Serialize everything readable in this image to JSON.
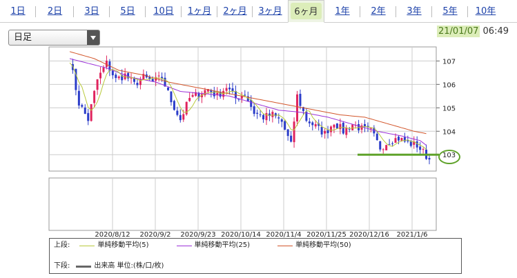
{
  "tabs": [
    {
      "label": "1日",
      "w": 52
    },
    {
      "label": "2日",
      "w": 55
    },
    {
      "label": "3日",
      "w": 52
    },
    {
      "label": "5日",
      "w": 52
    },
    {
      "label": "10日",
      "w": 52
    },
    {
      "label": "1ヶ月",
      "w": 52
    },
    {
      "label": "2ヶ月",
      "w": 51
    },
    {
      "label": "3ヶ月",
      "w": 51
    },
    {
      "label": "6ヶ月",
      "w": 53,
      "active": true
    },
    {
      "label": "1年",
      "w": 52
    },
    {
      "label": "2年",
      "w": 52
    },
    {
      "label": "3年",
      "w": 52
    },
    {
      "label": "5年",
      "w": 52
    },
    {
      "label": "10年",
      "w": 51
    }
  ],
  "period_select": {
    "value": "日足"
  },
  "timestamp": {
    "date": "21/01/07",
    "time": "06:49"
  },
  "legend": {
    "upper_label": "上段:",
    "lower_label": "下段:",
    "ma5": "単純移動平均(5)",
    "ma25": "単純移動平均(25)",
    "ma50": "単純移動平均(50)",
    "volume": "出来高 単位:(株/口/枚)"
  },
  "colors": {
    "up": "#e0245e",
    "down": "#2a3cc9",
    "ma5": "#b8c93a",
    "ma25": "#9b30d9",
    "ma50": "#d2552a",
    "annotation": "#5fa22a"
  },
  "chart_data": {
    "type": "candlestick",
    "y_ticks": [
      107,
      106,
      105,
      104,
      103
    ],
    "ylim": [
      102.3,
      107.6
    ],
    "x_ticks": [
      "2020/8/12",
      "2020/9/2",
      "2020/9/23",
      "2020/10/14",
      "2020/11/4",
      "2020/11/25",
      "2020/12/16",
      "2021/1/6"
    ],
    "highlight_level": 103.0,
    "highlight_label": "103",
    "close_trend": [
      [
        0,
        107.1
      ],
      [
        3,
        105.2
      ],
      [
        6,
        104.5
      ],
      [
        9,
        106.2
      ],
      [
        12,
        106.9
      ],
      [
        15,
        106.2
      ],
      [
        18,
        106.4
      ],
      [
        21,
        106.0
      ],
      [
        24,
        106.3
      ],
      [
        27,
        106.1
      ],
      [
        30,
        106.3
      ],
      [
        33,
        105.3
      ],
      [
        36,
        104.5
      ],
      [
        39,
        105.4
      ],
      [
        42,
        105.6
      ],
      [
        45,
        105.8
      ],
      [
        48,
        105.5
      ],
      [
        51,
        105.9
      ],
      [
        54,
        105.4
      ],
      [
        57,
        105.6
      ],
      [
        60,
        104.8
      ],
      [
        63,
        104.6
      ],
      [
        66,
        104.7
      ],
      [
        69,
        104.4
      ],
      [
        72,
        103.4
      ],
      [
        74,
        105.5
      ],
      [
        77,
        104.5
      ],
      [
        80,
        104.2
      ],
      [
        83,
        103.9
      ],
      [
        86,
        104.4
      ],
      [
        89,
        104.0
      ],
      [
        92,
        104.3
      ],
      [
        95,
        104.1
      ],
      [
        98,
        104.0
      ],
      [
        101,
        103.3
      ],
      [
        104,
        103.6
      ],
      [
        107,
        103.7
      ],
      [
        110,
        103.5
      ],
      [
        113,
        103.4
      ],
      [
        115,
        103.1
      ],
      [
        117,
        102.8
      ]
    ],
    "ma50_trend": [
      [
        0,
        107.4
      ],
      [
        8,
        107.1
      ],
      [
        16,
        106.6
      ],
      [
        24,
        106.4
      ],
      [
        32,
        106.1
      ],
      [
        40,
        105.9
      ],
      [
        48,
        105.7
      ],
      [
        56,
        105.5
      ],
      [
        64,
        105.3
      ],
      [
        72,
        105.1
      ],
      [
        80,
        104.9
      ],
      [
        88,
        104.7
      ],
      [
        96,
        104.6
      ],
      [
        104,
        104.3
      ],
      [
        112,
        104.0
      ],
      [
        116,
        103.9
      ]
    ],
    "ma25_trend": [
      [
        0,
        107.1
      ],
      [
        6,
        106.9
      ],
      [
        12,
        106.7
      ],
      [
        20,
        106.3
      ],
      [
        28,
        106.1
      ],
      [
        36,
        105.7
      ],
      [
        44,
        105.6
      ],
      [
        52,
        105.5
      ],
      [
        60,
        105.2
      ],
      [
        68,
        104.9
      ],
      [
        76,
        104.8
      ],
      [
        84,
        104.6
      ],
      [
        92,
        104.3
      ],
      [
        100,
        104.0
      ],
      [
        108,
        103.8
      ],
      [
        114,
        103.6
      ],
      [
        116,
        103.4
      ]
    ]
  }
}
